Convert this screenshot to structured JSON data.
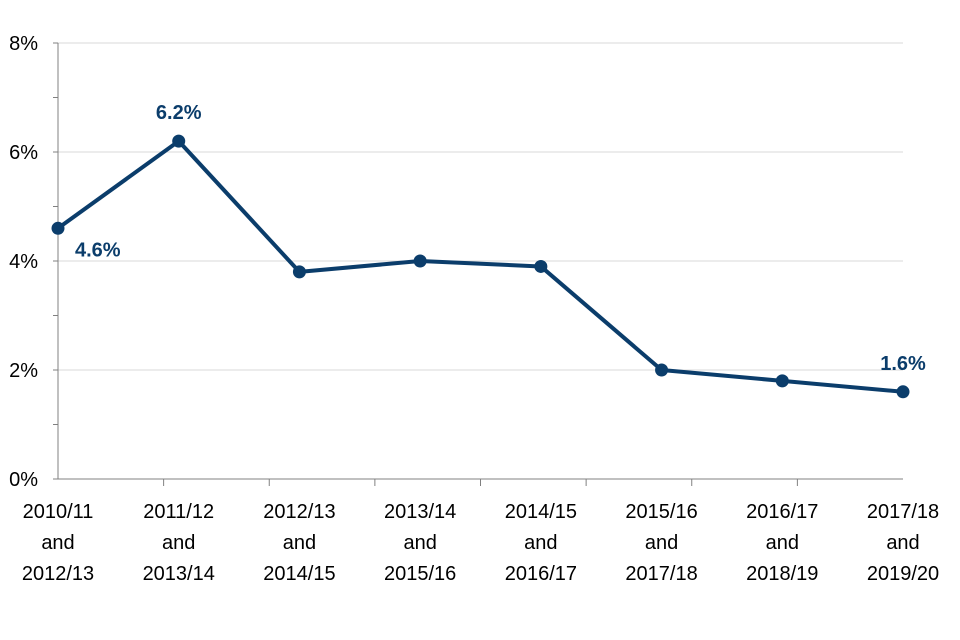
{
  "chart_data": {
    "type": "line",
    "categories": [
      [
        "2010/11",
        "and",
        "2012/13"
      ],
      [
        "2011/12",
        "and",
        "2013/14"
      ],
      [
        "2012/13",
        "and",
        "2014/15"
      ],
      [
        "2013/14",
        "and",
        "2015/16"
      ],
      [
        "2014/15",
        "and",
        "2016/17"
      ],
      [
        "2015/16",
        "and",
        "2017/18"
      ],
      [
        "2016/17",
        "and",
        "2018/19"
      ],
      [
        "2017/18",
        "and",
        "2019/20"
      ]
    ],
    "series": [
      {
        "values": [
          4.6,
          6.2,
          3.8,
          4.0,
          3.9,
          2.0,
          1.8,
          1.6
        ]
      }
    ],
    "data_labels": [
      {
        "index": 0,
        "text": "4.6%",
        "placement": "below-right"
      },
      {
        "index": 1,
        "text": "6.2%",
        "placement": "above"
      },
      {
        "index": 7,
        "text": "1.6%",
        "placement": "above"
      }
    ],
    "ylim": [
      0,
      8
    ],
    "yticks": [
      0,
      2,
      4,
      6,
      8
    ],
    "ytick_labels": [
      "0%",
      "2%",
      "4%",
      "6%",
      "8%"
    ],
    "grid": true,
    "legend": "none",
    "colors": {
      "line": "#0b3d6b",
      "grid": "#d9d9d9",
      "axis": "#808080"
    }
  }
}
